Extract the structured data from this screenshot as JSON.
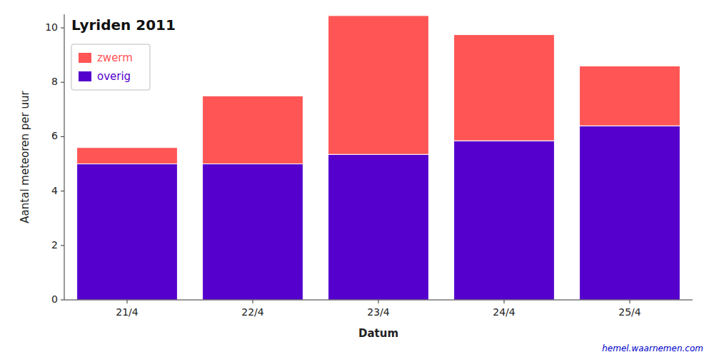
{
  "chart_data": {
    "type": "bar",
    "stacked": true,
    "title": "Lyriden 2011",
    "x_label": "Datum",
    "y_label": "Aantal meteoren per uur",
    "categories": [
      "21/4",
      "22/4",
      "23/4",
      "24/4",
      "25/4"
    ],
    "series": [
      {
        "name": "overig",
        "color": "#5500cc",
        "values": [
          5.0,
          5.0,
          5.35,
          5.85,
          6.4
        ]
      },
      {
        "name": "zwerm",
        "color": "#ff5555",
        "values": [
          0.6,
          2.5,
          5.1,
          3.9,
          2.2
        ]
      }
    ],
    "ylim": [
      0,
      10.5
    ],
    "yticks": [
      0,
      2,
      4,
      6,
      8,
      10
    ],
    "grid": false,
    "legend": "upper left",
    "annotations": [
      {
        "text": "hemel.waarnemen.com",
        "color": "#0000cc"
      }
    ]
  }
}
